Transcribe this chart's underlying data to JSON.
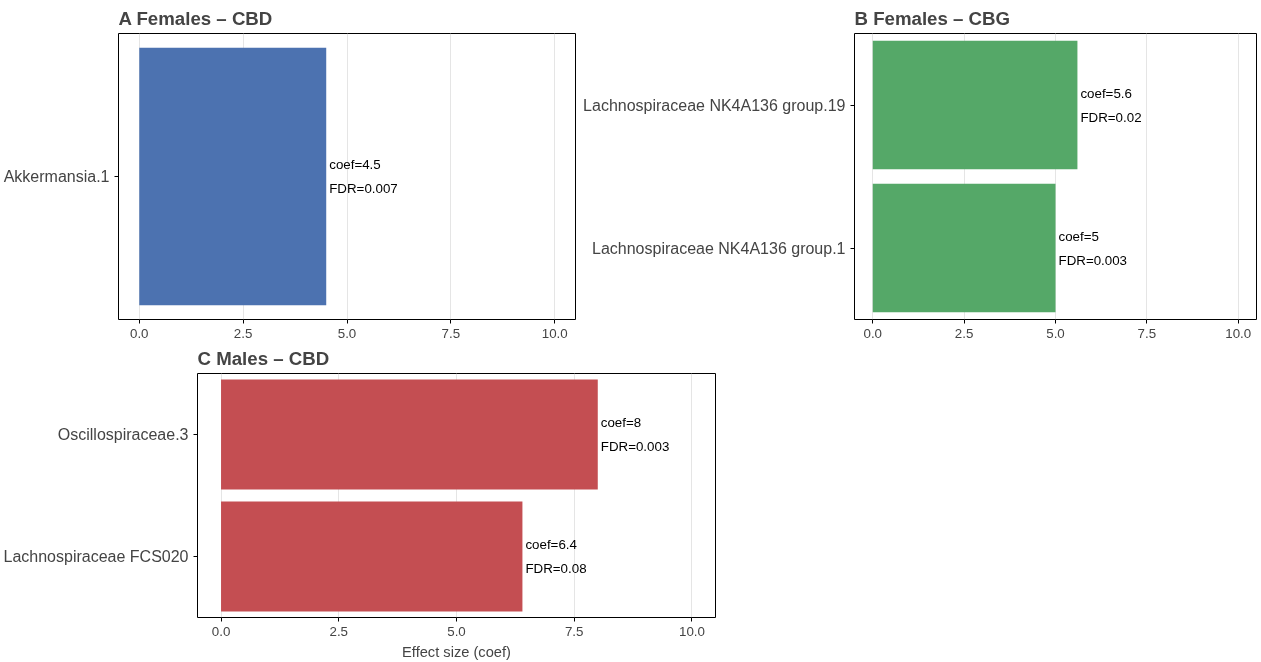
{
  "chart_data": [
    {
      "type": "bar",
      "orientation": "horizontal",
      "title": "A  Females – CBD",
      "categories": [
        "Akkermansia.1"
      ],
      "series": [
        {
          "color": "#4c72b0",
          "values": [
            4.5
          ]
        }
      ],
      "value_labels": [
        "coef=4.5\nFDR=0.007"
      ],
      "xlim": [
        -0.5,
        10.5
      ],
      "xticks": [
        {
          "value": 0,
          "label": "0.0"
        },
        {
          "value": 2.5,
          "label": "2.5"
        },
        {
          "value": 5,
          "label": "5.0"
        },
        {
          "value": 7.5,
          "label": "7.5"
        },
        {
          "value": 10,
          "label": "10.0"
        }
      ],
      "grid": "x"
    },
    {
      "type": "bar",
      "orientation": "horizontal",
      "title": "B  Females – CBG",
      "categories": [
        "Lachnospiraceae NK4A136 group.19",
        "Lachnospiraceae NK4A136 group.1"
      ],
      "series": [
        {
          "color": "#55a868",
          "values": [
            5.6,
            5
          ]
        }
      ],
      "value_labels": [
        "coef=5.6\nFDR=0.02",
        "coef=5\nFDR=0.003"
      ],
      "xlim": [
        -0.5,
        10.5
      ],
      "xticks": [
        {
          "value": 0,
          "label": "0.0"
        },
        {
          "value": 2.5,
          "label": "2.5"
        },
        {
          "value": 5,
          "label": "5.0"
        },
        {
          "value": 7.5,
          "label": "7.5"
        },
        {
          "value": 10,
          "label": "10.0"
        }
      ],
      "grid": "x"
    },
    {
      "type": "bar",
      "orientation": "horizontal",
      "title": "C  Males – CBD",
      "xlabel": "Effect size (coef)",
      "categories": [
        "Oscillospiraceae.3",
        "Lachnospiraceae FCS020"
      ],
      "series": [
        {
          "color": "#c44e52",
          "values": [
            8,
            6.4
          ]
        }
      ],
      "value_labels": [
        "coef=8\nFDR=0.003",
        "coef=6.4\nFDR=0.08"
      ],
      "xlim": [
        -0.5,
        10.5
      ],
      "xticks": [
        {
          "value": 0,
          "label": "0.0"
        },
        {
          "value": 2.5,
          "label": "2.5"
        },
        {
          "value": 5,
          "label": "5.0"
        },
        {
          "value": 7.5,
          "label": "7.5"
        },
        {
          "value": 10,
          "label": "10.0"
        }
      ],
      "grid": "x"
    }
  ]
}
